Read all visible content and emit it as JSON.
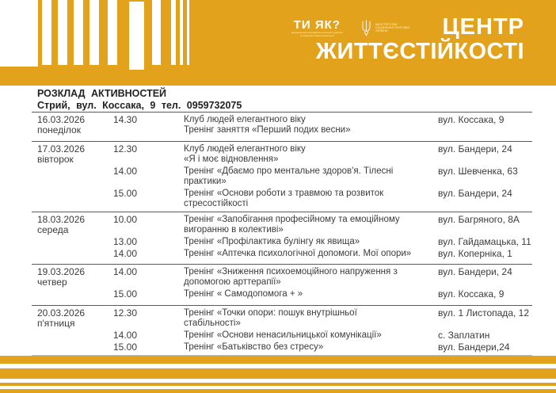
{
  "colors": {
    "accent_orange": "#E2A21B",
    "header_text": "#FFFFFF",
    "table_text": "#3B3B3B",
    "separator": "#5A5A5A"
  },
  "header": {
    "tyyak": {
      "label": "ТИ ЯК?",
      "subtitle_line1": "всеукраїнська програма ментального здоров'я",
      "subtitle_line2": "за ініціативи Олени Зеленської"
    },
    "ministry": {
      "line1": "МІНІСТЕРСТВО",
      "line2": "СОЦІАЛЬНОЇ ПОЛІТИКИ",
      "line3": "УКРАЇНИ"
    },
    "brand": {
      "line1": "ЦЕНТР",
      "line2": "ЖИТТЄСТІЙКОСТІ"
    }
  },
  "title": {
    "heading": "РОЗКЛАД АКТИВНОСТЕЙ",
    "subheading": "Стрий, вул. Коссака, 9 тел. 0959732075"
  },
  "schedule": {
    "rows": [
      {
        "date": "16.03.2026",
        "day": "понеділок",
        "entries": [
          {
            "time": "14.30",
            "lines": [
              "Клуб людей елегантного віку",
              "Тренінг заняття «Перший подих весни»"
            ],
            "address": "вул. Коссака, 9"
          }
        ]
      },
      {
        "date": "17.03.2026",
        "day": "вівторок",
        "entries": [
          {
            "time": "12.30",
            "lines": [
              "Клуб людей елегантного віку",
              "«Я і моє відновлення»"
            ],
            "address": "вул. Бандери, 24"
          },
          {
            "time": "14.00",
            "lines": [
              "Тренінг «Дбаємо про ментальне здоров'я. Тілесні",
              "практики»"
            ],
            "address": "вул. Шевченка, 63"
          },
          {
            "time": "15.00",
            "lines": [
              "Тренінг «Основи роботи з травмою та розвиток",
              "стресостійкості"
            ],
            "address": "вул. Бандери, 24"
          }
        ]
      },
      {
        "date": "18.03.2026",
        "day": "середа",
        "entries": [
          {
            "time": "10.00",
            "lines": [
              "Тренінг «Запобігання професійному та емоційному",
              "вигоранню в колективі»"
            ],
            "address": "вул. Багряного, 8А"
          },
          {
            "time": "13.00",
            "lines": [
              "Тренінг «Профілактика булінгу як явища»"
            ],
            "address": "вул. Гайдамацька, 11"
          },
          {
            "time": "14.00",
            "lines": [
              "Тренінг «Аптечка психологічної допомоги. Мої опори»"
            ],
            "address": "вул. Коперніка, 1"
          }
        ]
      },
      {
        "date": "19.03.2026",
        "day": "четвер",
        "entries": [
          {
            "time": "14.00",
            "lines": [
              "Тренінг «Зниження психоемоційного напруження з",
              "допомогою арттерапії»"
            ],
            "address": "вул. Бандери, 24"
          },
          {
            "time": "15.00",
            "lines": [
              "Тренінг « Самодопомога + »"
            ],
            "address": "вул. Коссака, 9"
          }
        ]
      },
      {
        "date": "20.03.2026",
        "day": "п'ятниця",
        "entries": [
          {
            "time": "12.30",
            "lines": [
              "Тренінг «Точки опори: пошук внутрішньої",
              "стабільності»"
            ],
            "address": "вул. 1 Листопада, 12"
          },
          {
            "time": "14.00",
            "lines": [
              "Тренінг «Основи ненасильницької комунікації»"
            ],
            "address": "с. Заплатин"
          },
          {
            "time": "15.00",
            "lines": [
              "Тренінг «Батьківство без стресу»"
            ],
            "address": "вул. Бандери,24"
          }
        ]
      }
    ]
  }
}
